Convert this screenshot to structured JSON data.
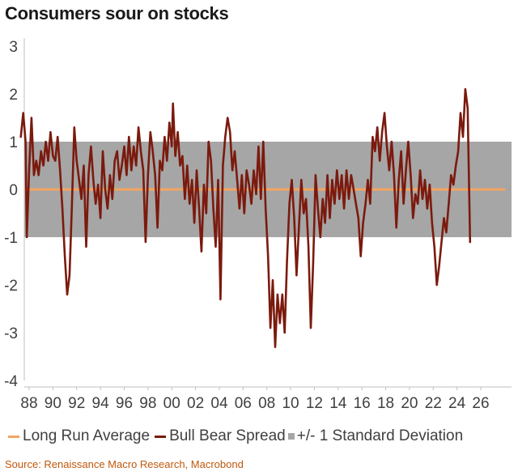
{
  "chart_data": {
    "type": "line",
    "title": "Consumers sour on stocks",
    "source": "Source: Renaissance Macro Research, Macrobond",
    "xlabel": "",
    "ylabel": "",
    "xlim": [
      1987.2,
      2026.2
    ],
    "ylim": [
      -4,
      3
    ],
    "y_ticks": [
      3,
      2,
      1,
      0,
      -1,
      -2,
      -3,
      -4
    ],
    "x_ticks": [
      {
        "value": 1988,
        "label": "88"
      },
      {
        "value": 1990,
        "label": "90"
      },
      {
        "value": 1992,
        "label": "92"
      },
      {
        "value": 1994,
        "label": "94"
      },
      {
        "value": 1996,
        "label": "96"
      },
      {
        "value": 1998,
        "label": "98"
      },
      {
        "value": 2000,
        "label": "00"
      },
      {
        "value": 2002,
        "label": "02"
      },
      {
        "value": 2004,
        "label": "04"
      },
      {
        "value": 2006,
        "label": "06"
      },
      {
        "value": 2008,
        "label": "08"
      },
      {
        "value": 2010,
        "label": "10"
      },
      {
        "value": 2012,
        "label": "12"
      },
      {
        "value": 2014,
        "label": "14"
      },
      {
        "value": 2016,
        "label": "16"
      },
      {
        "value": 2018,
        "label": "18"
      },
      {
        "value": 2020,
        "label": "20"
      },
      {
        "value": 2022,
        "label": "22"
      },
      {
        "value": 2024,
        "label": "24"
      },
      {
        "value": 2026,
        "label": "26"
      }
    ],
    "band": {
      "name": "+/- 1 Standard Deviation",
      "lower": -1,
      "upper": 1,
      "color": "#a6a6a6"
    },
    "series": [
      {
        "name": "Long Run Average",
        "color": "#f4a460",
        "kind": "hline",
        "value": 0
      },
      {
        "name": "Bull Bear Spread",
        "color": "#7b1a0e",
        "kind": "line",
        "points": [
          [
            1987.3,
            1.1
          ],
          [
            1987.5,
            1.6
          ],
          [
            1987.7,
            1.0
          ],
          [
            1987.8,
            -1.0
          ],
          [
            1988.0,
            0.4
          ],
          [
            1988.2,
            1.5
          ],
          [
            1988.4,
            0.3
          ],
          [
            1988.6,
            0.6
          ],
          [
            1988.8,
            0.3
          ],
          [
            1989.0,
            0.8
          ],
          [
            1989.2,
            0.5
          ],
          [
            1989.4,
            1.0
          ],
          [
            1989.6,
            0.6
          ],
          [
            1989.8,
            1.2
          ],
          [
            1990.0,
            0.7
          ],
          [
            1990.2,
            0.6
          ],
          [
            1990.4,
            1.1
          ],
          [
            1990.6,
            0.4
          ],
          [
            1990.8,
            -0.4
          ],
          [
            1991.0,
            -1.4
          ],
          [
            1991.2,
            -2.2
          ],
          [
            1991.4,
            -1.8
          ],
          [
            1991.6,
            -0.3
          ],
          [
            1991.8,
            1.3
          ],
          [
            1992.0,
            0.6
          ],
          [
            1992.2,
            0.2
          ],
          [
            1992.4,
            -0.2
          ],
          [
            1992.6,
            0.5
          ],
          [
            1992.8,
            -1.2
          ],
          [
            1993.0,
            0.3
          ],
          [
            1993.2,
            0.9
          ],
          [
            1993.4,
            0.2
          ],
          [
            1993.6,
            -0.3
          ],
          [
            1993.8,
            0.1
          ],
          [
            1994.0,
            -0.6
          ],
          [
            1994.2,
            0.8
          ],
          [
            1994.4,
            0.0
          ],
          [
            1994.6,
            -0.4
          ],
          [
            1994.8,
            0.3
          ],
          [
            1995.0,
            -0.2
          ],
          [
            1995.2,
            0.6
          ],
          [
            1995.4,
            0.8
          ],
          [
            1995.6,
            0.2
          ],
          [
            1995.8,
            0.5
          ],
          [
            1996.0,
            0.9
          ],
          [
            1996.2,
            0.3
          ],
          [
            1996.4,
            1.1
          ],
          [
            1996.6,
            0.4
          ],
          [
            1996.8,
            0.9
          ],
          [
            1997.0,
            0.5
          ],
          [
            1997.2,
            1.3
          ],
          [
            1997.4,
            0.8
          ],
          [
            1997.6,
            0.4
          ],
          [
            1997.8,
            -1.1
          ],
          [
            1998.0,
            0.3
          ],
          [
            1998.2,
            1.2
          ],
          [
            1998.4,
            0.8
          ],
          [
            1998.6,
            0.3
          ],
          [
            1998.8,
            -0.8
          ],
          [
            1999.0,
            0.6
          ],
          [
            1999.2,
            0.4
          ],
          [
            1999.4,
            1.1
          ],
          [
            1999.6,
            0.6
          ],
          [
            1999.8,
            1.4
          ],
          [
            2000.0,
            0.9
          ],
          [
            2000.1,
            1.8
          ],
          [
            2000.3,
            0.7
          ],
          [
            2000.5,
            1.2
          ],
          [
            2000.7,
            0.5
          ],
          [
            2000.9,
            0.7
          ],
          [
            2001.1,
            -0.2
          ],
          [
            2001.3,
            0.5
          ],
          [
            2001.5,
            -0.3
          ],
          [
            2001.7,
            0.2
          ],
          [
            2001.9,
            -0.7
          ],
          [
            2002.1,
            0.4
          ],
          [
            2002.3,
            -0.4
          ],
          [
            2002.5,
            -1.3
          ],
          [
            2002.7,
            0.1
          ],
          [
            2002.9,
            -0.5
          ],
          [
            2003.1,
            1.0
          ],
          [
            2003.3,
            0.6
          ],
          [
            2003.5,
            -0.4
          ],
          [
            2003.7,
            -1.2
          ],
          [
            2003.9,
            0.2
          ],
          [
            2004.1,
            -2.3
          ],
          [
            2004.3,
            0.5
          ],
          [
            2004.5,
            1.1
          ],
          [
            2004.7,
            1.5
          ],
          [
            2004.9,
            1.2
          ],
          [
            2005.1,
            0.4
          ],
          [
            2005.3,
            0.8
          ],
          [
            2005.5,
            0.2
          ],
          [
            2005.7,
            -0.4
          ],
          [
            2005.9,
            0.3
          ],
          [
            2006.1,
            -0.5
          ],
          [
            2006.3,
            0.4
          ],
          [
            2006.5,
            0.1
          ],
          [
            2006.7,
            -0.3
          ],
          [
            2006.9,
            0.4
          ],
          [
            2007.1,
            -0.1
          ],
          [
            2007.3,
            0.9
          ],
          [
            2007.5,
            -0.2
          ],
          [
            2007.7,
            1.0
          ],
          [
            2007.9,
            -0.4
          ],
          [
            2008.1,
            -1.4
          ],
          [
            2008.3,
            -2.9
          ],
          [
            2008.5,
            -1.9
          ],
          [
            2008.7,
            -3.3
          ],
          [
            2008.9,
            -2.2
          ],
          [
            2009.1,
            -2.8
          ],
          [
            2009.3,
            -2.2
          ],
          [
            2009.5,
            -3.0
          ],
          [
            2009.7,
            -1.5
          ],
          [
            2009.9,
            -0.3
          ],
          [
            2010.1,
            0.2
          ],
          [
            2010.3,
            -0.6
          ],
          [
            2010.5,
            -1.8
          ],
          [
            2010.7,
            -0.8
          ],
          [
            2010.9,
            0.2
          ],
          [
            2011.1,
            -0.5
          ],
          [
            2011.3,
            -0.2
          ],
          [
            2011.5,
            -1.2
          ],
          [
            2011.7,
            -2.9
          ],
          [
            2011.9,
            -1.5
          ],
          [
            2012.1,
            0.3
          ],
          [
            2012.3,
            -0.4
          ],
          [
            2012.5,
            -1.0
          ],
          [
            2012.7,
            -0.2
          ],
          [
            2012.9,
            -0.7
          ],
          [
            2013.1,
            0.3
          ],
          [
            2013.3,
            -0.6
          ],
          [
            2013.5,
            0.2
          ],
          [
            2013.7,
            -0.3
          ],
          [
            2013.9,
            0.4
          ],
          [
            2014.1,
            -0.2
          ],
          [
            2014.3,
            0.3
          ],
          [
            2014.5,
            -0.4
          ],
          [
            2014.7,
            0.4
          ],
          [
            2014.9,
            -0.2
          ],
          [
            2015.1,
            0.3
          ],
          [
            2015.3,
            0.0
          ],
          [
            2015.5,
            -0.3
          ],
          [
            2015.7,
            -0.6
          ],
          [
            2015.9,
            -1.4
          ],
          [
            2016.1,
            -0.7
          ],
          [
            2016.3,
            -0.3
          ],
          [
            2016.5,
            0.2
          ],
          [
            2016.7,
            -0.3
          ],
          [
            2016.9,
            1.1
          ],
          [
            2017.1,
            0.8
          ],
          [
            2017.3,
            1.3
          ],
          [
            2017.5,
            0.6
          ],
          [
            2017.7,
            1.2
          ],
          [
            2017.9,
            1.6
          ],
          [
            2018.1,
            0.9
          ],
          [
            2018.3,
            0.4
          ],
          [
            2018.5,
            1.0
          ],
          [
            2018.7,
            0.3
          ],
          [
            2018.9,
            -0.8
          ],
          [
            2019.1,
            0.2
          ],
          [
            2019.3,
            0.8
          ],
          [
            2019.5,
            -0.3
          ],
          [
            2019.7,
            0.4
          ],
          [
            2019.9,
            1.0
          ],
          [
            2020.1,
            0.3
          ],
          [
            2020.3,
            -0.6
          ],
          [
            2020.5,
            -0.1
          ],
          [
            2020.7,
            -0.3
          ],
          [
            2020.9,
            0.4
          ],
          [
            2021.1,
            -0.2
          ],
          [
            2021.3,
            0.2
          ],
          [
            2021.5,
            -0.4
          ],
          [
            2021.7,
            0.1
          ],
          [
            2021.9,
            -0.7
          ],
          [
            2022.1,
            -1.2
          ],
          [
            2022.3,
            -2.0
          ],
          [
            2022.5,
            -1.6
          ],
          [
            2022.7,
            -1.1
          ],
          [
            2022.9,
            -0.6
          ],
          [
            2023.1,
            -0.9
          ],
          [
            2023.3,
            -0.3
          ],
          [
            2023.5,
            0.3
          ],
          [
            2023.7,
            0.1
          ],
          [
            2023.9,
            0.5
          ],
          [
            2024.1,
            0.8
          ],
          [
            2024.3,
            1.6
          ],
          [
            2024.5,
            1.1
          ],
          [
            2024.7,
            2.1
          ],
          [
            2024.9,
            1.7
          ],
          [
            2025.0,
            0.3
          ],
          [
            2025.1,
            -1.1
          ]
        ]
      }
    ]
  },
  "legend": {
    "items": [
      {
        "label": "Long Run Average",
        "color": "#f4a460",
        "marker": "line"
      },
      {
        "label": "Bull Bear Spread",
        "color": "#7b1a0e",
        "marker": "line"
      },
      {
        "label": "+/- 1 Standard Deviation",
        "color": "#a6a6a6",
        "marker": "box"
      }
    ]
  }
}
